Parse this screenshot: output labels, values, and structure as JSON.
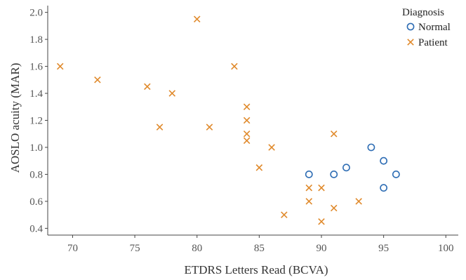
{
  "chart_data": {
    "type": "scatter",
    "xlabel": "ETDRS Letters Read (BCVA)",
    "ylabel": "AOSLO acuity (MAR)",
    "xlim": [
      68,
      101
    ],
    "ylim": [
      0.35,
      2.05
    ],
    "xticks": [
      70,
      75,
      80,
      85,
      90,
      95,
      100
    ],
    "yticks": [
      0.4,
      0.6,
      0.8,
      1.0,
      1.2,
      1.4,
      1.6,
      1.8,
      2.0
    ],
    "ytick_labels": [
      "0.4",
      "0.6",
      "0.8",
      "1.0",
      "1.2",
      "1.4",
      "1.6",
      "1.8",
      "2.0"
    ],
    "grid": false,
    "legend": {
      "title": "Diagnosis",
      "placement": "top-right"
    },
    "series": [
      {
        "name": "Normal",
        "marker": "circle",
        "color": "#2e6db4",
        "points": [
          {
            "x": 89,
            "y": 0.8
          },
          {
            "x": 91,
            "y": 0.8
          },
          {
            "x": 92,
            "y": 0.85
          },
          {
            "x": 94,
            "y": 1.0
          },
          {
            "x": 95,
            "y": 0.9
          },
          {
            "x": 95,
            "y": 0.7
          },
          {
            "x": 96,
            "y": 0.8
          }
        ]
      },
      {
        "name": "Patient",
        "marker": "x",
        "color": "#e08a2c",
        "points": [
          {
            "x": 69,
            "y": 1.6
          },
          {
            "x": 72,
            "y": 1.5
          },
          {
            "x": 76,
            "y": 1.45
          },
          {
            "x": 77,
            "y": 1.15
          },
          {
            "x": 78,
            "y": 1.4
          },
          {
            "x": 80,
            "y": 1.95
          },
          {
            "x": 81,
            "y": 1.15
          },
          {
            "x": 83,
            "y": 1.6
          },
          {
            "x": 84,
            "y": 1.3
          },
          {
            "x": 84,
            "y": 1.2
          },
          {
            "x": 84,
            "y": 1.1
          },
          {
            "x": 84,
            "y": 1.05
          },
          {
            "x": 85,
            "y": 0.85
          },
          {
            "x": 86,
            "y": 1.0
          },
          {
            "x": 87,
            "y": 0.5
          },
          {
            "x": 89,
            "y": 0.7
          },
          {
            "x": 89,
            "y": 0.6
          },
          {
            "x": 90,
            "y": 0.7
          },
          {
            "x": 90,
            "y": 0.45
          },
          {
            "x": 91,
            "y": 1.1
          },
          {
            "x": 91,
            "y": 0.55
          },
          {
            "x": 93,
            "y": 0.6
          }
        ]
      }
    ]
  }
}
